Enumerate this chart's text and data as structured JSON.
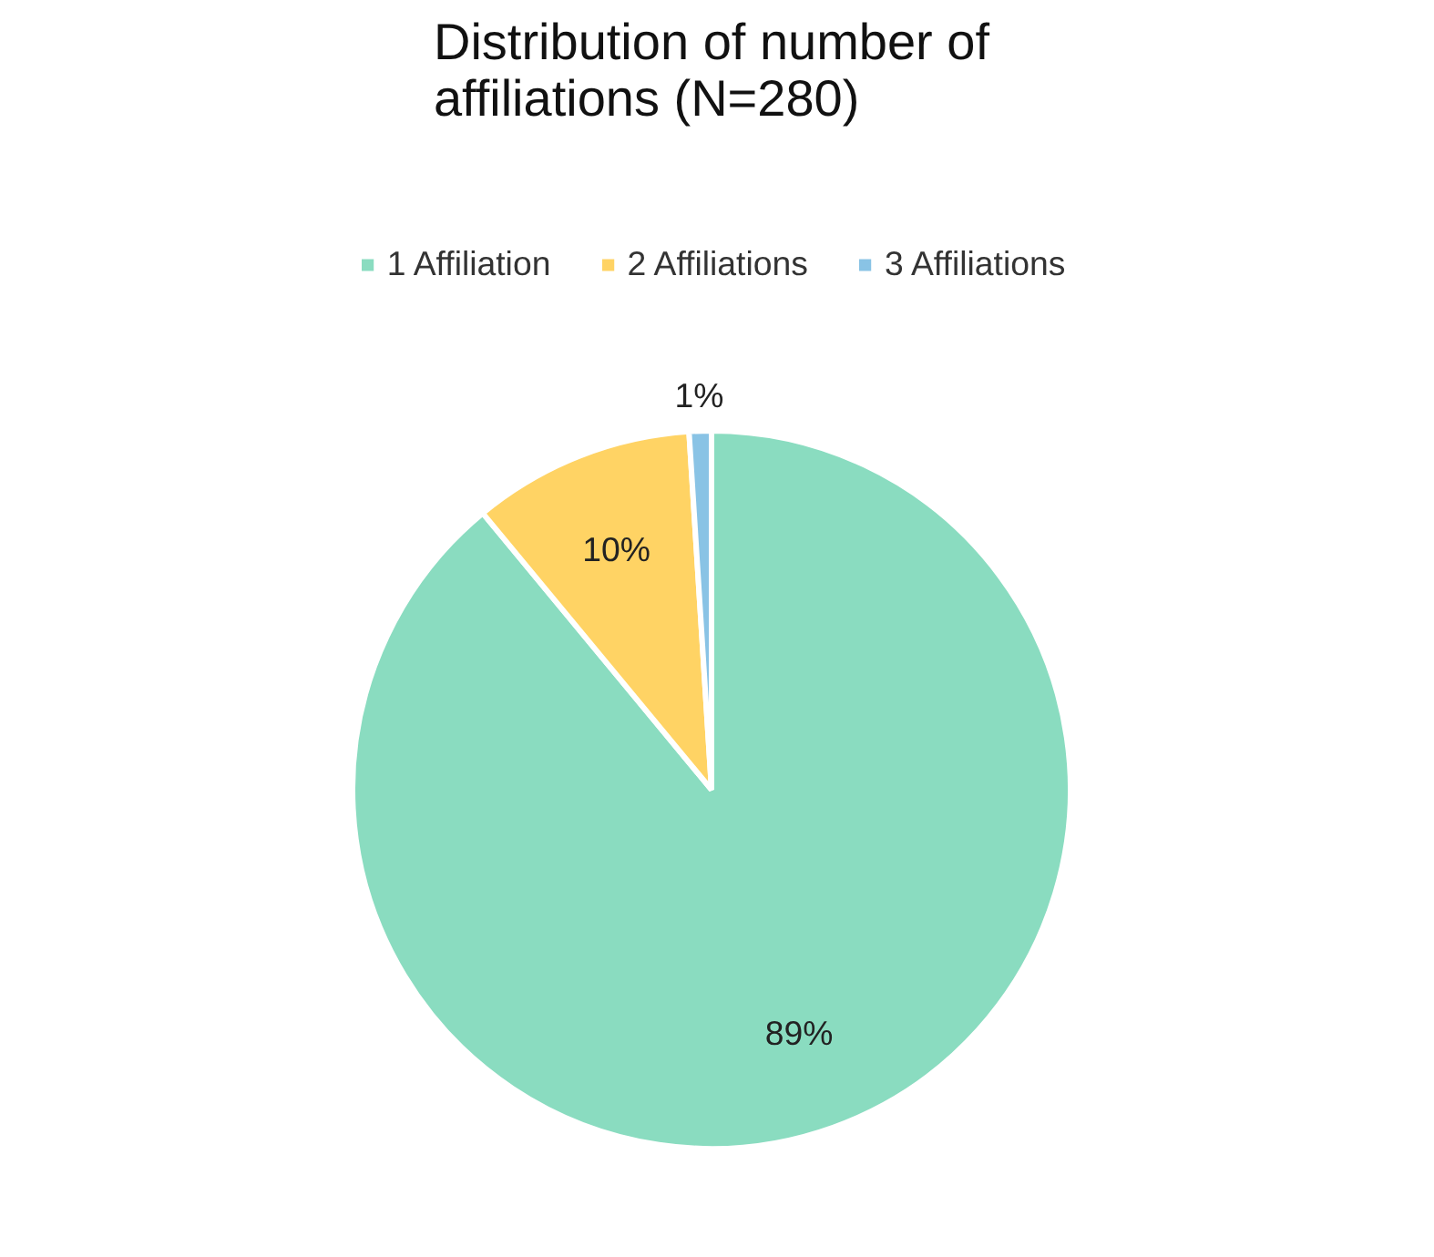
{
  "chart_data": {
    "type": "pie",
    "title": "Distribution of number of affiliations (N=280)",
    "categories": [
      "1 Affiliation",
      "2 Affiliations",
      "3 Affiliations"
    ],
    "values": [
      89,
      10,
      1
    ],
    "value_labels": [
      "89%",
      "10%",
      "1%"
    ],
    "colors": [
      "#6dd3b0",
      "#ffc83d",
      "#6cb4de"
    ],
    "legend": "top"
  }
}
